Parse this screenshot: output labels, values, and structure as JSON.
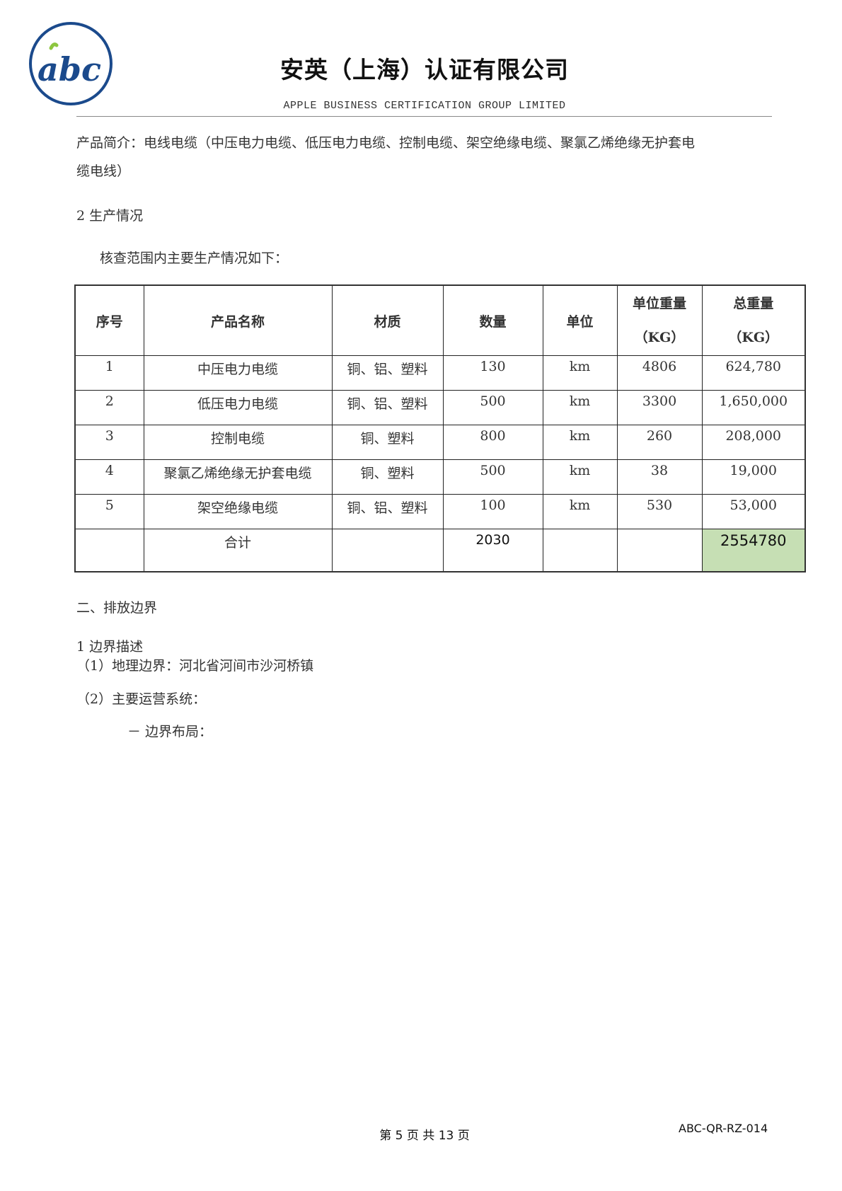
{
  "header": {
    "logo_text": "abc",
    "title": "安英（上海）认证有限公司",
    "subtitle": "APPLE BUSINESS CERTIFICATION GROUP LIMITED",
    "brand_color": "#1b4a8c",
    "leaf_color": "#8dc63f"
  },
  "body": {
    "intro_line1": "产品简介：电线电缆（中压电力电缆、低压电力电缆、控制电缆、架空绝缘电缆、聚氯乙烯绝缘无护套电",
    "intro_line2": "缆电线）",
    "section2": "2 生产情况",
    "section2_lead": "核查范围内主要生产情况如下：",
    "chapter2": "二、排放边界",
    "boundary_heading": "1 边界描述",
    "boundary_geo": "（1）地理边界：河北省河间市沙河桥镇",
    "boundary_ops": "（2）主要运营系统：",
    "boundary_layout": "－ 边界布局："
  },
  "table": {
    "headers": [
      "序号",
      "产品名称",
      "材质",
      "数量",
      "单位",
      "单位重量",
      "总重量"
    ],
    "header_unit": "（KG）",
    "rows": [
      [
        "1",
        "中压电力电缆",
        "铜、铝、塑料",
        "130",
        "km",
        "4806",
        "624,780"
      ],
      [
        "2",
        "低压电力电缆",
        "铜、铝、塑料",
        "500",
        "km",
        "3300",
        "1,650,000"
      ],
      [
        "3",
        "控制电缆",
        "铜、塑料",
        "800",
        "km",
        "260",
        "208,000"
      ],
      [
        "4",
        "聚氯乙烯绝缘无护套电缆",
        "铜、塑料",
        "500",
        "km",
        "38",
        "19,000"
      ],
      [
        "5",
        "架空绝缘电缆",
        "铜、铝、塑料",
        "100",
        "km",
        "530",
        "53,000"
      ]
    ],
    "total": {
      "label": "合计",
      "quantity": "2030",
      "total_weight": "2554780"
    },
    "highlight_color": "#c6dfb4"
  },
  "footer": {
    "page": "第 5 页 共 13 页",
    "doc_code": "ABC-QR-RZ-014"
  }
}
